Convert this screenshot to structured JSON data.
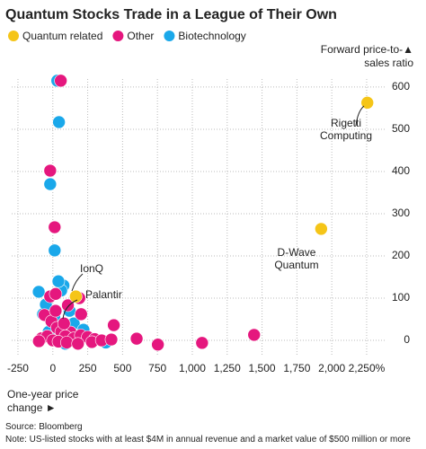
{
  "chart_data": {
    "type": "scatter",
    "title": "Quantum Stocks Trade in a League of Their Own",
    "x_label": "One-year price change ►",
    "y_label": "Forward price-to-▲ sales ratio",
    "source": "Source: Bloomberg",
    "note": "Note: US-listed stocks with at least $4M in annual revenue and a market value of $500 million or more",
    "annotations": [
      "Rigetti Computing",
      "D-Wave Quantum",
      "IonQ",
      "Palantir"
    ],
    "xlim": [
      -295,
      2392
    ],
    "ylim": [
      -34,
      619
    ],
    "xticks": [
      -250,
      0,
      250,
      500,
      750,
      {
        "value": 1000,
        "label": "1,000"
      },
      {
        "value": 1250,
        "label": "1,250"
      },
      {
        "value": 1500,
        "label": "1,500"
      },
      {
        "value": 1750,
        "label": "1,750"
      },
      {
        "value": 2000,
        "label": "2,000"
      },
      {
        "value": 2250,
        "label": "2,250%"
      }
    ],
    "yticks": [
      0,
      100,
      200,
      300,
      400,
      500,
      600
    ],
    "grid": true,
    "series": [
      {
        "name": "Biotechnology",
        "color": "#1aa8ea",
        "x": [
          32,
          44,
          -19,
          13,
          -101,
          -70,
          76,
          60,
          120,
          -50,
          10,
          150,
          220,
          380,
          -30,
          90,
          40
        ],
        "values": [
          615,
          517,
          370,
          213,
          115,
          62,
          130,
          118,
          70,
          85,
          55,
          40,
          25,
          -5,
          20,
          -8,
          140
        ]
      },
      {
        "name": "Other",
        "color": "#e5177e",
        "x": [
          57,
          -19,
          13,
          -19,
          20,
          108,
          190,
          203,
          437,
          601,
          753,
          1070,
          1443,
          127,
          -60,
          -10,
          30,
          60,
          90,
          150,
          200,
          250,
          300,
          -80,
          -40,
          0,
          40,
          100,
          180,
          280,
          350,
          420,
          -100,
          20,
          80
        ],
        "values": [
          615,
          402,
          268,
          104,
          110,
          83,
          100,
          62,
          36,
          4,
          -10,
          -6,
          13,
          19,
          60,
          45,
          30,
          20,
          10,
          5,
          12,
          8,
          3,
          5,
          10,
          0,
          -3,
          -5,
          -8,
          -4,
          0,
          2,
          -2,
          70,
          40
        ]
      },
      {
        "name": "Quantum related",
        "color": "#f5c518",
        "x": [
          2255,
          1924,
          165
        ],
        "values": [
          563,
          264,
          104
        ]
      }
    ],
    "legend_order": [
      "Quantum related",
      "Other",
      "Biotechnology"
    ]
  }
}
